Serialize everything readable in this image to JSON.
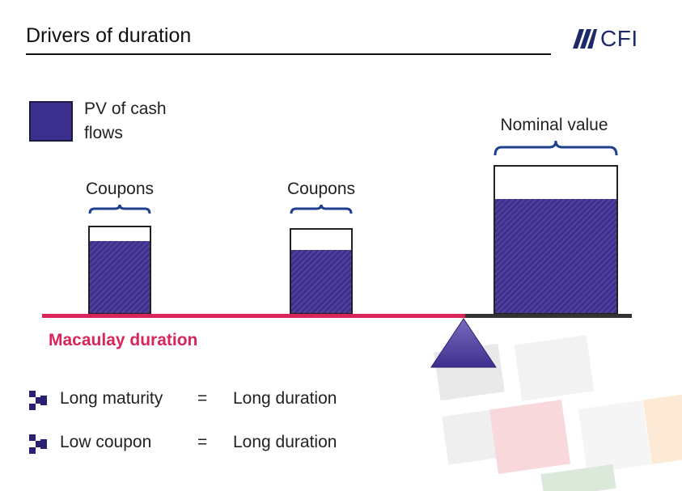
{
  "header": {
    "title": "Drivers of duration",
    "logo_text": "CFI",
    "logo_icon": "cfi-stripes-icon"
  },
  "legend": {
    "label": "PV of cash flows",
    "color": "#3d2f8e"
  },
  "bars": [
    {
      "label": "Coupons",
      "pv_fraction": 0.84
    },
    {
      "label": "Coupons",
      "pv_fraction": 0.76
    },
    {
      "label": "Nominal value",
      "pv_fraction": 0.78
    }
  ],
  "beam": {
    "label": "Macaulay duration",
    "color": "#d9255a"
  },
  "bullets": [
    {
      "left": "Long maturity",
      "eq": "=",
      "right": "Long duration"
    },
    {
      "left": "Low coupon",
      "eq": "=",
      "right": "Long duration"
    }
  ],
  "colors": {
    "accent": "#d9255a",
    "pv_fill": "#3d2f8e",
    "brace": "#1f3f8f"
  }
}
